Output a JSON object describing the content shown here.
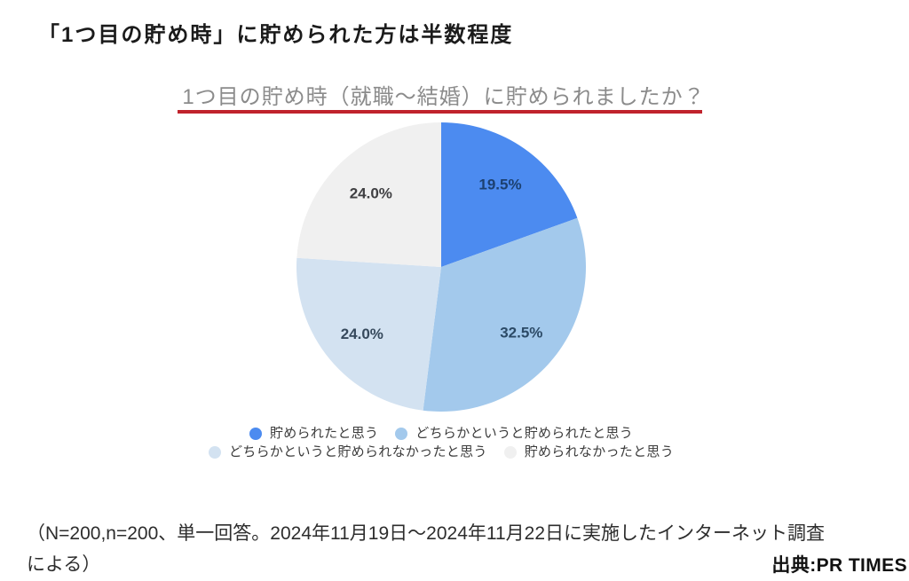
{
  "page": {
    "background_color": "#ffffff"
  },
  "heading": {
    "text": "「1つ目の貯め時」に貯められた方は半数程度"
  },
  "chart": {
    "title_color": "#8b8b8b",
    "underline_color": "#c0232c"
  },
  "chart_data": {
    "type": "pie",
    "title": "1つ目の貯め時（就職〜結婚）に貯められましたか？",
    "start_angle_deg": 0,
    "direction": "clockwise",
    "slices": [
      {
        "label": "貯められたと思う",
        "value": 19.5,
        "display": "19.5%",
        "color": "#4c8bf0",
        "label_color": "#1c4070"
      },
      {
        "label": "どちらかというと貯められたと思う",
        "value": 32.5,
        "display": "32.5%",
        "color": "#a3c9ec",
        "label_color": "#2c4a66"
      },
      {
        "label": "どちらかというと貯められなかったと思う",
        "value": 24.0,
        "display": "24.0%",
        "color": "#d3e2f1",
        "label_color": "#36495c"
      },
      {
        "label": "貯められなかったと思う",
        "value": 24.0,
        "display": "24.0%",
        "color": "#f0f0f0",
        "label_color": "#3f3f42"
      }
    ],
    "legend_position": "bottom",
    "legend_rows": [
      [
        0,
        1
      ],
      [
        2,
        3
      ]
    ]
  },
  "footnote": {
    "lines": [
      "（N=200,n=200、単一回答。2024年11月19日〜2024年11月22日に実施したインターネット調査",
      "による）"
    ]
  },
  "source": {
    "text": "出典:PR TIMES"
  }
}
